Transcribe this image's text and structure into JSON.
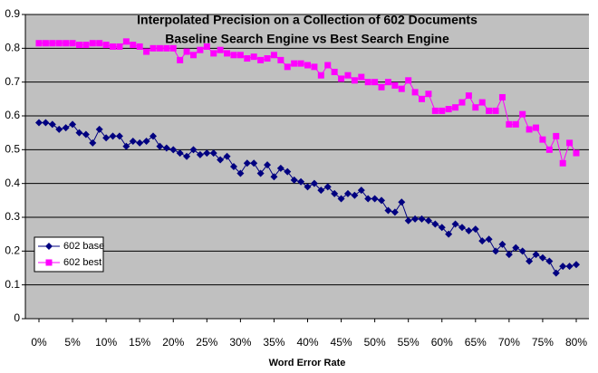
{
  "chart_data": {
    "type": "line",
    "title": "Interpolated Precision on a Collection of 602 Documents",
    "subtitle": "Baseline Search Engine vs Best Search Engine",
    "x_label": "Word Error Rate",
    "x": [
      0,
      1,
      2,
      3,
      4,
      5,
      6,
      7,
      8,
      9,
      10,
      11,
      12,
      13,
      14,
      15,
      16,
      17,
      18,
      19,
      20,
      21,
      22,
      23,
      24,
      25,
      26,
      27,
      28,
      29,
      30,
      31,
      32,
      33,
      34,
      35,
      36,
      37,
      38,
      39,
      40,
      41,
      42,
      43,
      44,
      45,
      46,
      47,
      48,
      49,
      50,
      51,
      52,
      53,
      54,
      55,
      56,
      57,
      58,
      59,
      60,
      61,
      62,
      63,
      64,
      65,
      66,
      67,
      68,
      69,
      70,
      71,
      72,
      73,
      74,
      75,
      76,
      77,
      78,
      79,
      80
    ],
    "series": [
      {
        "name": "602 base",
        "color": "#000080",
        "marker": "diamond",
        "values": [
          0.58,
          0.58,
          0.575,
          0.56,
          0.565,
          0.575,
          0.55,
          0.545,
          0.52,
          0.56,
          0.535,
          0.54,
          0.54,
          0.51,
          0.525,
          0.52,
          0.525,
          0.54,
          0.51,
          0.505,
          0.5,
          0.49,
          0.48,
          0.5,
          0.485,
          0.49,
          0.49,
          0.47,
          0.48,
          0.45,
          0.43,
          0.46,
          0.46,
          0.43,
          0.455,
          0.42,
          0.445,
          0.435,
          0.41,
          0.405,
          0.39,
          0.4,
          0.38,
          0.39,
          0.37,
          0.355,
          0.37,
          0.365,
          0.38,
          0.355,
          0.355,
          0.35,
          0.32,
          0.315,
          0.345,
          0.29,
          0.295,
          0.295,
          0.29,
          0.28,
          0.27,
          0.25,
          0.28,
          0.27,
          0.26,
          0.265,
          0.23,
          0.235,
          0.2,
          0.22,
          0.19,
          0.21,
          0.2,
          0.17,
          0.19,
          0.18,
          0.17,
          0.135,
          0.155,
          0.155,
          0.16
        ]
      },
      {
        "name": "602 best",
        "color": "#ff00ff",
        "marker": "square",
        "values": [
          0.815,
          0.815,
          0.815,
          0.815,
          0.815,
          0.815,
          0.81,
          0.81,
          0.815,
          0.815,
          0.81,
          0.805,
          0.805,
          0.82,
          0.81,
          0.805,
          0.79,
          0.8,
          0.8,
          0.8,
          0.8,
          0.765,
          0.79,
          0.78,
          0.795,
          0.805,
          0.785,
          0.795,
          0.785,
          0.78,
          0.78,
          0.77,
          0.775,
          0.765,
          0.77,
          0.78,
          0.765,
          0.745,
          0.755,
          0.755,
          0.75,
          0.745,
          0.72,
          0.75,
          0.73,
          0.71,
          0.72,
          0.705,
          0.715,
          0.7,
          0.7,
          0.685,
          0.7,
          0.69,
          0.68,
          0.705,
          0.67,
          0.65,
          0.665,
          0.615,
          0.615,
          0.62,
          0.625,
          0.64,
          0.66,
          0.625,
          0.64,
          0.615,
          0.615,
          0.655,
          0.575,
          0.575,
          0.605,
          0.56,
          0.565,
          0.53,
          0.5,
          0.54,
          0.46,
          0.52,
          0.49
        ]
      }
    ],
    "xlim": [
      0,
      80
    ],
    "xticks": [
      {
        "value": 0,
        "label": "0%"
      },
      {
        "value": 5,
        "label": "5%"
      },
      {
        "value": 10,
        "label": "10%"
      },
      {
        "value": 15,
        "label": "15%"
      },
      {
        "value": 20,
        "label": "20%"
      },
      {
        "value": 25,
        "label": "25%"
      },
      {
        "value": 30,
        "label": "30%"
      },
      {
        "value": 35,
        "label": "35%"
      },
      {
        "value": 40,
        "label": "40%"
      },
      {
        "value": 45,
        "label": "45%"
      },
      {
        "value": 50,
        "label": "50%"
      },
      {
        "value": 55,
        "label": "55%"
      },
      {
        "value": 60,
        "label": "60%"
      },
      {
        "value": 65,
        "label": "65%"
      },
      {
        "value": 70,
        "label": "70%"
      },
      {
        "value": 75,
        "label": "75%"
      },
      {
        "value": 80,
        "label": "80%"
      }
    ],
    "ylim": [
      0,
      0.9
    ],
    "yticks": [
      0,
      0.1,
      0.2,
      0.3,
      0.4,
      0.5,
      0.6,
      0.7,
      0.8,
      0.9
    ],
    "grid": true,
    "legend": "left"
  }
}
